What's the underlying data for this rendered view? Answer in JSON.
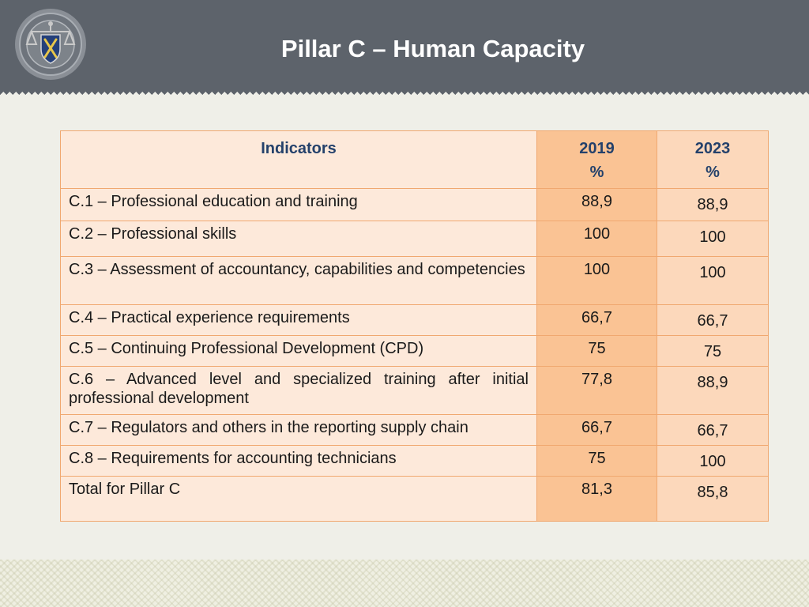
{
  "header": {
    "title": "Pillar C – Human Capacity"
  },
  "table": {
    "headers": {
      "indicators": "Indicators",
      "y2019_line1": "2019",
      "y2019_line2": "%",
      "y2023_line1": "2023",
      "y2023_line2": "%"
    },
    "rows": [
      {
        "indicator": "C.1 – Professional education and training",
        "v2019": "88,9",
        "v2023": "88,9"
      },
      {
        "indicator": "C.2 – Professional skills",
        "v2019": "100",
        "v2023": "100"
      },
      {
        "indicator": "C.3 – Assessment of accountancy, capabilities and competencies",
        "v2019": "100",
        "v2023": "100"
      },
      {
        "indicator": "C.4 – Practical experience requirements",
        "v2019": "66,7",
        "v2023": "66,7"
      },
      {
        "indicator": "C.5 – Continuing Professional Development (CPD)",
        "v2019": "75",
        "v2023": "75"
      },
      {
        "indicator": "C.6 – Advanced level and specialized training after initial professional development",
        "v2019": "77,8",
        "v2023": "88,9"
      },
      {
        "indicator": "C.7 – Regulators and others in the reporting supply chain",
        "v2019": "66,7",
        "v2023": "66,7"
      },
      {
        "indicator": "C.8 – Requirements for accounting technicians",
        "v2019": "75",
        "v2023": "100"
      },
      {
        "indicator": "Total for Pillar C",
        "v2019": "81,3",
        "v2023": "85,8"
      }
    ]
  },
  "colors": {
    "header_bg": "#5d636b",
    "indicator_col_bg": "#fde9da",
    "col_2019_bg": "#fac394",
    "col_2023_bg": "#fcd8bb",
    "header_text": "#24416b"
  }
}
